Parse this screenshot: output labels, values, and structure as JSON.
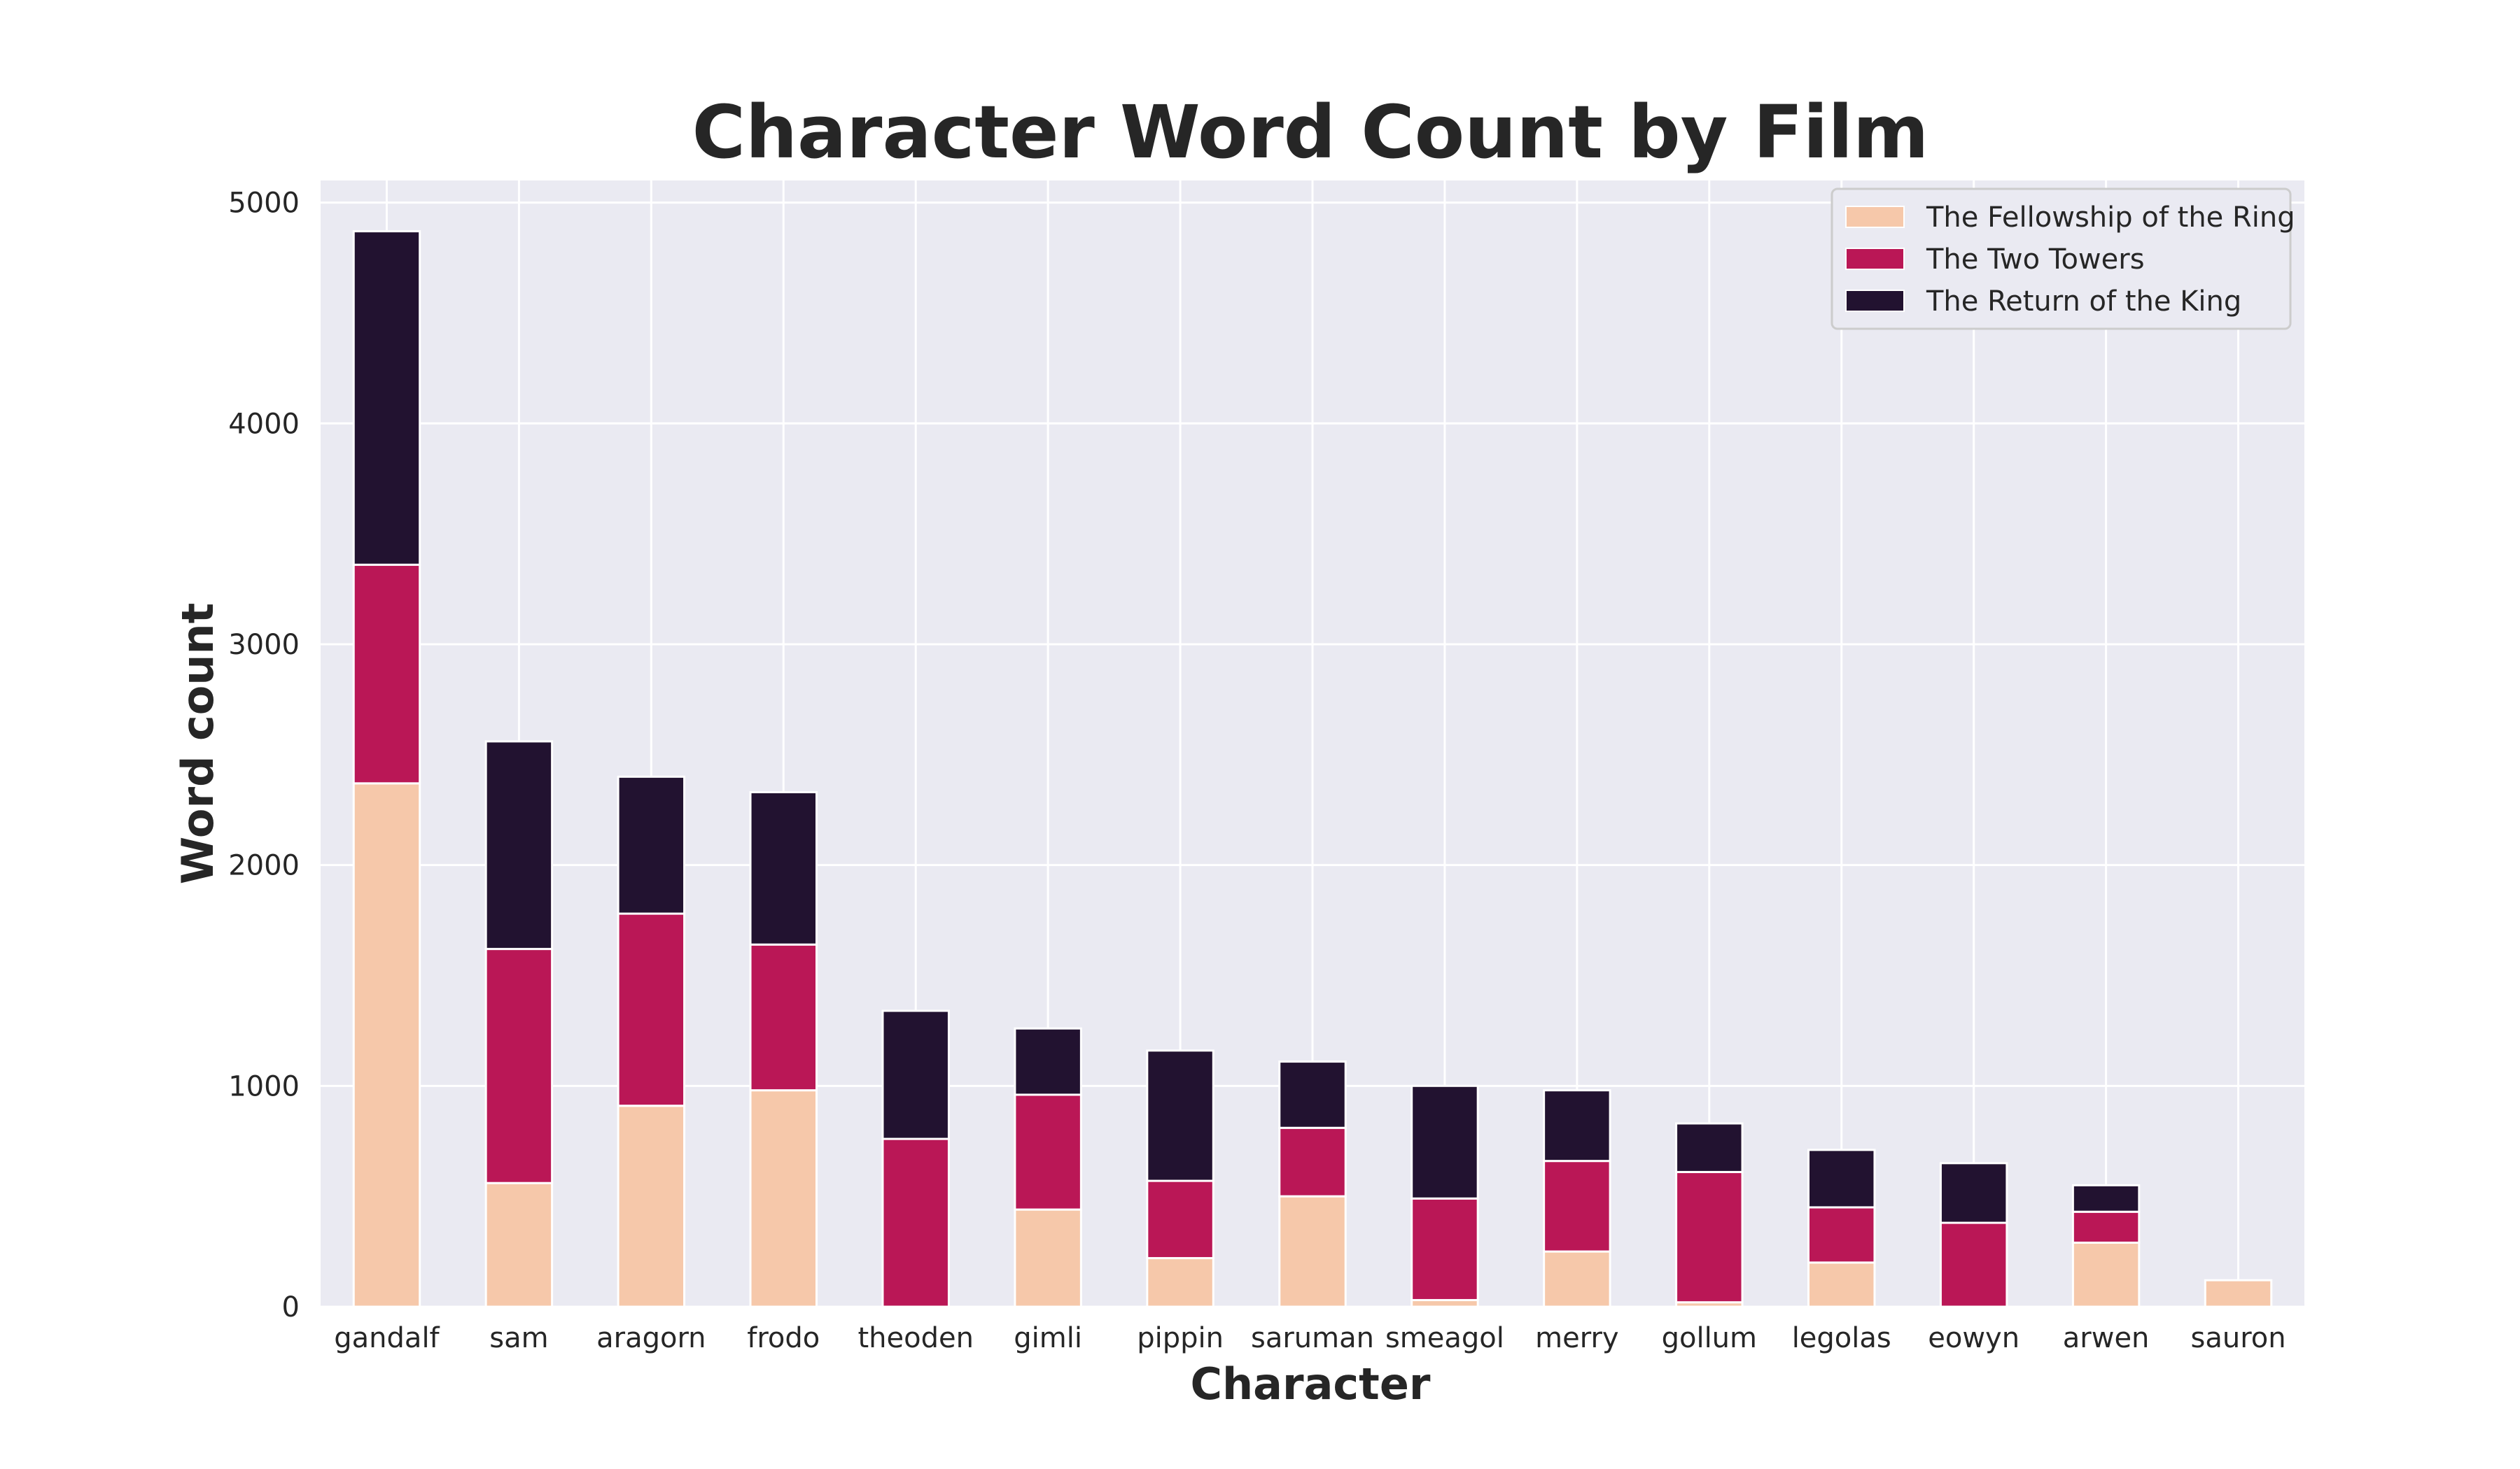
{
  "chart_data": {
    "type": "bar",
    "stacked": true,
    "title": "Character Word Count by Film",
    "xlabel": "Character",
    "ylabel": "Word count",
    "categories": [
      "gandalf",
      "sam",
      "aragorn",
      "frodo",
      "theoden",
      "gimli",
      "pippin",
      "saruman",
      "smeagol",
      "merry",
      "gollum",
      "legolas",
      "eowyn",
      "arwen",
      "sauron"
    ],
    "series": [
      {
        "name": "The Fellowship of the Ring",
        "color": "#F6C8AA",
        "values": [
          2370,
          560,
          910,
          980,
          0,
          440,
          220,
          500,
          30,
          250,
          20,
          200,
          0,
          290,
          120
        ]
      },
      {
        "name": "The Two Towers",
        "color": "#BA1756",
        "values": [
          990,
          1060,
          870,
          660,
          760,
          520,
          350,
          310,
          460,
          410,
          590,
          250,
          380,
          140,
          0
        ]
      },
      {
        "name": "The Return of the King",
        "color": "#221230",
        "values": [
          1510,
          940,
          620,
          690,
          580,
          300,
          590,
          300,
          510,
          320,
          220,
          260,
          270,
          120,
          0
        ]
      }
    ],
    "ylim": [
      0,
      5100
    ],
    "yticks": [
      "0",
      "1000",
      "2000",
      "3000",
      "4000",
      "5000"
    ],
    "grid": true,
    "legend_position": "top-right",
    "background": "#EAEAF2"
  }
}
